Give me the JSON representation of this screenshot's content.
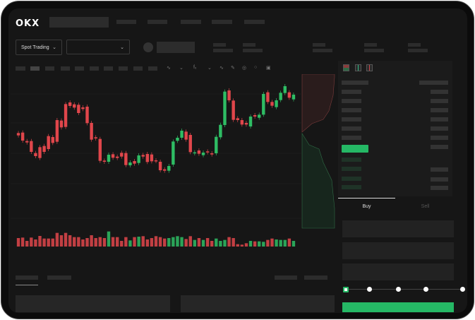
{
  "header": {
    "logo": "OKX"
  },
  "market": {
    "mode_label": "Spot Trading"
  },
  "tabs": {
    "buy": "Buy",
    "sell": "Sell"
  },
  "colors": {
    "up": "#2ebd64",
    "down": "#e0464b",
    "accent": "#25b865"
  },
  "chart_data": {
    "type": "candlestick",
    "candles": [
      [
        750,
        740
      ],
      [
        752,
        718
      ],
      [
        716,
        710
      ],
      [
        716,
        670
      ],
      [
        665,
        652
      ],
      [
        690,
        644
      ],
      [
        695,
        670
      ],
      [
        737,
        682
      ],
      [
        733,
        708
      ],
      [
        805,
        713
      ],
      [
        803,
        774
      ],
      [
        873,
        776
      ],
      [
        880,
        865
      ],
      [
        872,
        858
      ],
      [
        870,
        835
      ],
      [
        859,
        852
      ],
      [
        862,
        792
      ],
      [
        793,
        722
      ],
      [
        732,
        727
      ],
      [
        725,
        632
      ],
      [
        633,
        628
      ],
      [
        628,
        658
      ],
      [
        660,
        645
      ],
      [
        650,
        644
      ],
      [
        666,
        650
      ],
      [
        665,
        614
      ],
      [
        613,
        625
      ],
      [
        631,
        620
      ],
      [
        623,
        655
      ],
      [
        657,
        650
      ],
      [
        661,
        627
      ],
      [
        659,
        630
      ],
      [
        634,
        631
      ],
      [
        628,
        592
      ],
      [
        596,
        590
      ],
      [
        590,
        610
      ],
      [
        616,
        714
      ],
      [
        717,
        730
      ],
      [
        730,
        760
      ],
      [
        756,
        722
      ],
      [
        742,
        669
      ],
      [
        664,
        668
      ],
      [
        676,
        662
      ],
      [
        656,
        667
      ],
      [
        672,
        668
      ],
      [
        664,
        659
      ],
      [
        664,
        734
      ],
      [
        732,
        785
      ],
      [
        784,
        926
      ],
      [
        931,
        889
      ],
      [
        888,
        806
      ],
      [
        813,
        805
      ],
      [
        805,
        786
      ],
      [
        793,
        786
      ],
      [
        778,
        820
      ],
      [
        826,
        820
      ],
      [
        815,
        828
      ],
      [
        828,
        916
      ],
      [
        923,
        882
      ],
      [
        882,
        866
      ],
      [
        860,
        889
      ],
      [
        890,
        921
      ],
      [
        920,
        949
      ],
      [
        923,
        900
      ],
      [
        893,
        913
      ]
    ],
    "volumes": [
      36,
      38,
      24,
      38,
      30,
      45,
      34,
      34,
      34,
      58,
      48,
      58,
      48,
      40,
      40,
      30,
      36,
      48,
      36,
      40,
      36,
      64,
      40,
      40,
      24,
      40,
      26,
      40,
      42,
      44,
      30,
      36,
      44,
      40,
      34,
      36,
      40,
      44,
      40,
      32,
      44,
      28,
      36,
      28,
      36,
      24,
      34,
      24,
      28,
      40,
      36,
      10,
      8,
      14,
      24,
      22,
      22,
      20,
      28,
      34,
      30,
      28,
      28,
      34,
      24
    ]
  }
}
